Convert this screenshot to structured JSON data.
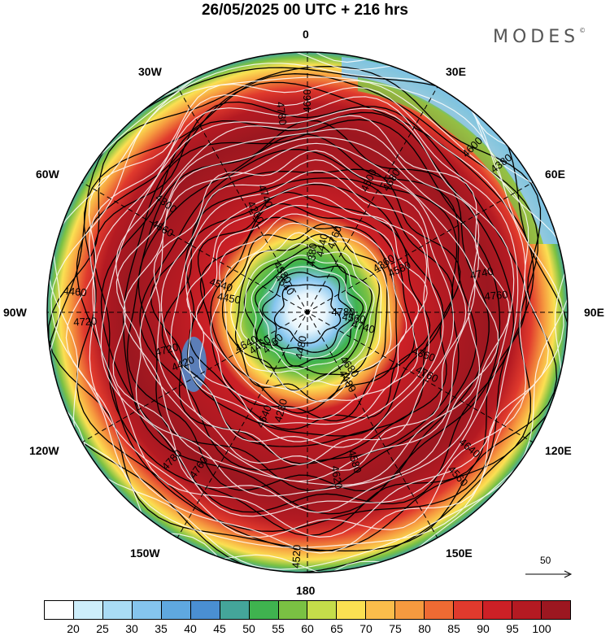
{
  "title": "26/05/2025  00 UTC  + 216 hrs",
  "brand": "MODES",
  "brand_mark": "©",
  "longitude_labels": {
    "lon_0": "0",
    "lon_30e": "30E",
    "lon_60e": "60E",
    "lon_90e": "90E",
    "lon_120e": "120E",
    "lon_150e": "150E",
    "lon_180": "180",
    "lon_150w": "150W",
    "lon_120w": "120W",
    "lon_90w": "90W",
    "lon_60w": "60W",
    "lon_30w": "30W"
  },
  "contour_labels": [
    "4780",
    "4760",
    "4380",
    "4680",
    "4450",
    "4360",
    "4280",
    "4200",
    "4360",
    "4420",
    "4500",
    "4580",
    "4660",
    "4740",
    "4760",
    "4780",
    "4640",
    "4720",
    "4600",
    "4520",
    "4540",
    "4560",
    "4460",
    "4440",
    "4480",
    "4540",
    "4580",
    "4640",
    "4740",
    "4760",
    "4720",
    "4680",
    "4620",
    "4300",
    "4760",
    "4780",
    "4660",
    "4560",
    "4460",
    "4380",
    "4480",
    "4580",
    "4740",
    "4640",
    "4760"
  ],
  "reference_vector": {
    "label": "50"
  },
  "colorbar": {
    "colors": [
      "#ffffff",
      "#cdeefb",
      "#a9dcf5",
      "#85c5ee",
      "#5fa8df",
      "#4a8fd2",
      "#44a59a",
      "#3fb34f",
      "#7ac143",
      "#c5dd4a",
      "#fbe052",
      "#fbbd4b",
      "#f69a3f",
      "#ef6a33",
      "#e03a2d",
      "#cc2026",
      "#b41a22",
      "#9c1720"
    ],
    "labels": [
      "20",
      "25",
      "30",
      "35",
      "40",
      "45",
      "50",
      "55",
      "60",
      "65",
      "70",
      "75",
      "80",
      "85",
      "90",
      "95",
      "100"
    ]
  }
}
